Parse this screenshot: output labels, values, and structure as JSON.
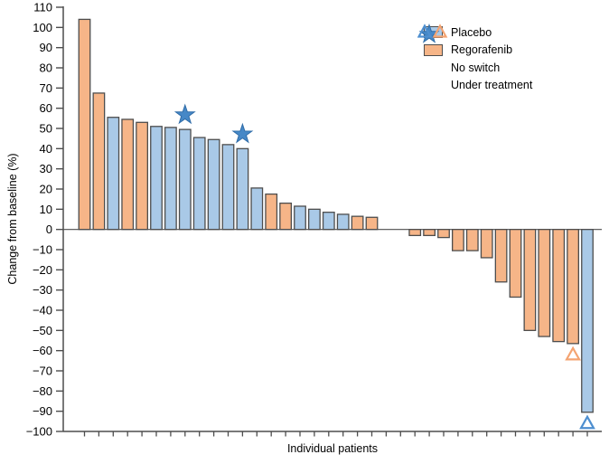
{
  "figure": {
    "ylabel": "Change from baseline (%)",
    "xlabel": "Individual patients"
  },
  "legend": {
    "items": [
      {
        "label": "Placebo",
        "swatch": "placebo-square"
      },
      {
        "label": "Regorafenib",
        "swatch": "regorafenib-square"
      },
      {
        "label": "No switch",
        "swatch": "blue-star"
      },
      {
        "label": "Under treatment",
        "swatch": "blue-and-orange-open-triangles"
      }
    ]
  },
  "colors": {
    "placebo_fill": "#a9c9e7",
    "regorafenib_fill": "#f6b588",
    "bar_border": "#4d4d4d",
    "axis": "#4d4d4d",
    "star_fill": "#4688c7",
    "star_border": "#2f6ca8",
    "triangle_blue": "#4e8fd0",
    "triangle_orange": "#f4a472",
    "text": "#000000"
  },
  "chart_data": {
    "type": "bar",
    "variant": "waterfall-per-patient",
    "title": "",
    "xlabel": "Individual patients",
    "ylabel": "Change from baseline (%)",
    "ylim": [
      -100,
      110
    ],
    "ytick_interval": 10,
    "yticks": [
      110,
      100,
      90,
      80,
      70,
      60,
      50,
      40,
      30,
      20,
      10,
      0,
      -10,
      -20,
      -30,
      -40,
      -50,
      -60,
      -70,
      -80,
      -90,
      -100
    ],
    "grid": false,
    "legend_position": "top-right",
    "marker_meanings": {
      "star": "No switch",
      "triangle": "Under treatment"
    },
    "patients": [
      {
        "arm": "regorafenib",
        "value": 104,
        "marker": null
      },
      {
        "arm": "regorafenib",
        "value": 67.5,
        "marker": null
      },
      {
        "arm": "placebo",
        "value": 55.5,
        "marker": null
      },
      {
        "arm": "regorafenib",
        "value": 54.5,
        "marker": null
      },
      {
        "arm": "regorafenib",
        "value": 53,
        "marker": null
      },
      {
        "arm": "placebo",
        "value": 51,
        "marker": null
      },
      {
        "arm": "placebo",
        "value": 50.5,
        "marker": null
      },
      {
        "arm": "placebo",
        "value": 49.5,
        "marker": "star"
      },
      {
        "arm": "placebo",
        "value": 45.5,
        "marker": null
      },
      {
        "arm": "placebo",
        "value": 44.5,
        "marker": null
      },
      {
        "arm": "placebo",
        "value": 42,
        "marker": null
      },
      {
        "arm": "placebo",
        "value": 40,
        "marker": "star"
      },
      {
        "arm": "placebo",
        "value": 20.5,
        "marker": null
      },
      {
        "arm": "regorafenib",
        "value": 17.5,
        "marker": null
      },
      {
        "arm": "regorafenib",
        "value": 13,
        "marker": null
      },
      {
        "arm": "placebo",
        "value": 11.5,
        "marker": null
      },
      {
        "arm": "placebo",
        "value": 10,
        "marker": null
      },
      {
        "arm": "placebo",
        "value": 8.5,
        "marker": null
      },
      {
        "arm": "placebo",
        "value": 7.5,
        "marker": null
      },
      {
        "arm": "regorafenib",
        "value": 6.5,
        "marker": null
      },
      {
        "arm": "regorafenib",
        "value": 6,
        "marker": null
      },
      {
        "arm": null,
        "value": 0,
        "marker": null
      },
      {
        "arm": null,
        "value": 0,
        "marker": null
      },
      {
        "arm": "regorafenib",
        "value": -3,
        "marker": null
      },
      {
        "arm": "regorafenib",
        "value": -3,
        "marker": null
      },
      {
        "arm": "regorafenib",
        "value": -4,
        "marker": null
      },
      {
        "arm": "regorafenib",
        "value": -10.5,
        "marker": null
      },
      {
        "arm": "regorafenib",
        "value": -10.5,
        "marker": null
      },
      {
        "arm": "regorafenib",
        "value": -14,
        "marker": null
      },
      {
        "arm": "regorafenib",
        "value": -26,
        "marker": null
      },
      {
        "arm": "regorafenib",
        "value": -33.5,
        "marker": null
      },
      {
        "arm": "regorafenib",
        "value": -50,
        "marker": null
      },
      {
        "arm": "regorafenib",
        "value": -53,
        "marker": null
      },
      {
        "arm": "regorafenib",
        "value": -55.5,
        "marker": null
      },
      {
        "arm": "regorafenib",
        "value": -56.5,
        "marker": "triangle"
      },
      {
        "arm": "placebo",
        "value": -90.5,
        "marker": "triangle"
      }
    ]
  }
}
